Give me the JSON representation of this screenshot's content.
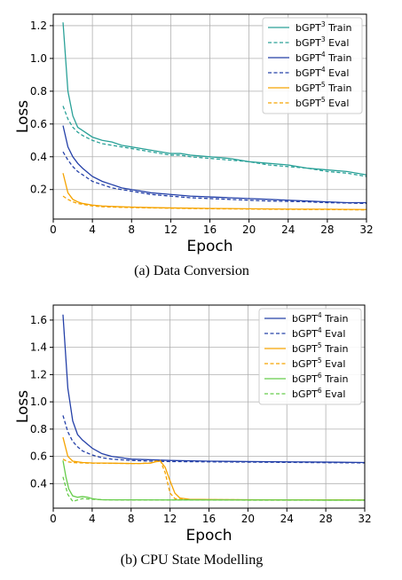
{
  "chart_data": [
    {
      "type": "line",
      "caption": "(a) Data Conversion",
      "xlabel": "Epoch",
      "ylabel": "Loss",
      "xlim": [
        0,
        32
      ],
      "ylim": [
        0.02,
        1.27
      ],
      "xticks": [
        0,
        4,
        8,
        12,
        16,
        20,
        24,
        28,
        32
      ],
      "yticks": [
        0.2,
        0.4,
        0.6,
        0.8,
        1.0,
        1.2
      ],
      "grid": true,
      "legend_position": "top-right",
      "series": [
        {
          "name_base": "bGPT",
          "name_sup": "3",
          "name_suffix": "Train",
          "color": "#2aa198",
          "dash": "solid",
          "x": [
            1,
            1.5,
            2,
            2.5,
            3,
            4,
            5,
            6,
            7,
            8,
            9,
            10,
            11,
            12,
            13,
            14,
            16,
            18,
            20,
            22,
            24,
            26,
            28,
            30,
            32
          ],
          "y": [
            1.22,
            0.8,
            0.65,
            0.58,
            0.56,
            0.52,
            0.5,
            0.49,
            0.47,
            0.46,
            0.45,
            0.44,
            0.43,
            0.42,
            0.42,
            0.41,
            0.4,
            0.39,
            0.37,
            0.36,
            0.35,
            0.33,
            0.32,
            0.31,
            0.29
          ]
        },
        {
          "name_base": "bGPT",
          "name_sup": "3",
          "name_suffix": "Eval",
          "color": "#2aa198",
          "dash": "dashed",
          "x": [
            1,
            1.5,
            2,
            2.5,
            3,
            4,
            5,
            6,
            7,
            8,
            9,
            10,
            11,
            12,
            13,
            14,
            16,
            18,
            20,
            22,
            24,
            26,
            28,
            30,
            32
          ],
          "y": [
            0.71,
            0.63,
            0.58,
            0.55,
            0.53,
            0.5,
            0.48,
            0.47,
            0.46,
            0.45,
            0.44,
            0.43,
            0.42,
            0.41,
            0.41,
            0.4,
            0.39,
            0.38,
            0.37,
            0.35,
            0.34,
            0.33,
            0.31,
            0.3,
            0.28
          ]
        },
        {
          "name_base": "bGPT",
          "name_sup": "4",
          "name_suffix": "Train",
          "color": "#2440a8",
          "dash": "solid",
          "x": [
            1,
            1.5,
            2,
            2.5,
            3,
            4,
            5,
            6,
            7,
            8,
            10,
            12,
            14,
            16,
            18,
            20,
            22,
            24,
            26,
            28,
            30,
            32
          ],
          "y": [
            0.59,
            0.46,
            0.4,
            0.36,
            0.33,
            0.28,
            0.25,
            0.23,
            0.21,
            0.2,
            0.18,
            0.17,
            0.16,
            0.155,
            0.15,
            0.145,
            0.14,
            0.135,
            0.13,
            0.125,
            0.12,
            0.12
          ]
        },
        {
          "name_base": "bGPT",
          "name_sup": "4",
          "name_suffix": "Eval",
          "color": "#2440a8",
          "dash": "dashed",
          "x": [
            1,
            1.5,
            2,
            2.5,
            3,
            4,
            5,
            6,
            7,
            8,
            10,
            12,
            14,
            16,
            18,
            20,
            22,
            24,
            26,
            28,
            30,
            32
          ],
          "y": [
            0.43,
            0.38,
            0.34,
            0.31,
            0.29,
            0.25,
            0.23,
            0.21,
            0.2,
            0.19,
            0.17,
            0.16,
            0.15,
            0.145,
            0.14,
            0.135,
            0.13,
            0.128,
            0.125,
            0.12,
            0.118,
            0.115
          ]
        },
        {
          "name_base": "bGPT",
          "name_sup": "5",
          "name_suffix": "Train",
          "color": "#f5a300",
          "dash": "solid",
          "x": [
            1,
            1.5,
            2,
            2.5,
            3,
            4,
            5,
            6,
            8,
            10,
            12,
            16,
            20,
            24,
            28,
            32
          ],
          "y": [
            0.3,
            0.18,
            0.14,
            0.125,
            0.115,
            0.105,
            0.1,
            0.097,
            0.093,
            0.09,
            0.088,
            0.085,
            0.083,
            0.081,
            0.08,
            0.078
          ]
        },
        {
          "name_base": "bGPT",
          "name_sup": "5",
          "name_suffix": "Eval",
          "color": "#f5a300",
          "dash": "dashed",
          "x": [
            1,
            1.5,
            2,
            2.5,
            3,
            4,
            5,
            6,
            8,
            10,
            12,
            16,
            20,
            24,
            28,
            32
          ],
          "y": [
            0.16,
            0.14,
            0.125,
            0.115,
            0.11,
            0.1,
            0.095,
            0.093,
            0.09,
            0.088,
            0.086,
            0.083,
            0.081,
            0.079,
            0.078,
            0.076
          ]
        }
      ]
    },
    {
      "type": "line",
      "caption": "(b) CPU State Modelling",
      "xlabel": "Epoch",
      "ylabel": "Loss",
      "xlim": [
        0,
        32
      ],
      "ylim": [
        0.22,
        1.71
      ],
      "xticks": [
        0,
        4,
        8,
        12,
        16,
        20,
        24,
        28,
        32
      ],
      "yticks": [
        0.4,
        0.6,
        0.8,
        1.0,
        1.2,
        1.4,
        1.6
      ],
      "grid": true,
      "legend_position": "top-right",
      "series": [
        {
          "name_base": "bGPT",
          "name_sup": "4",
          "name_suffix": "Train",
          "color": "#2440a8",
          "dash": "solid",
          "x": [
            1,
            1.5,
            2,
            2.5,
            3,
            4,
            5,
            6,
            7,
            8,
            10,
            12,
            16,
            20,
            24,
            28,
            32
          ],
          "y": [
            1.64,
            1.1,
            0.86,
            0.76,
            0.72,
            0.66,
            0.62,
            0.6,
            0.59,
            0.58,
            0.575,
            0.57,
            0.565,
            0.562,
            0.56,
            0.558,
            0.555
          ]
        },
        {
          "name_base": "bGPT",
          "name_sup": "4",
          "name_suffix": "Eval",
          "color": "#2440a8",
          "dash": "dashed",
          "x": [
            1,
            1.5,
            2,
            2.5,
            3,
            4,
            5,
            6,
            7,
            8,
            10,
            12,
            16,
            20,
            24,
            28,
            32
          ],
          "y": [
            0.9,
            0.78,
            0.71,
            0.67,
            0.64,
            0.61,
            0.59,
            0.58,
            0.575,
            0.57,
            0.565,
            0.562,
            0.56,
            0.558,
            0.556,
            0.554,
            0.552
          ]
        },
        {
          "name_base": "bGPT",
          "name_sup": "5",
          "name_suffix": "Train",
          "color": "#f5a300",
          "dash": "solid",
          "x": [
            1,
            1.5,
            2,
            2.5,
            3,
            4,
            6,
            8,
            9,
            10,
            10.5,
            11,
            11.5,
            12,
            12.5,
            13,
            14,
            16,
            20,
            24,
            28,
            32
          ],
          "y": [
            0.74,
            0.6,
            0.565,
            0.56,
            0.555,
            0.552,
            0.55,
            0.548,
            0.548,
            0.55,
            0.56,
            0.565,
            0.52,
            0.42,
            0.33,
            0.295,
            0.285,
            0.283,
            0.282,
            0.281,
            0.281,
            0.28
          ]
        },
        {
          "name_base": "bGPT",
          "name_sup": "5",
          "name_suffix": "Eval",
          "color": "#f5a300",
          "dash": "dashed",
          "x": [
            1,
            1.5,
            2,
            2.5,
            3,
            4,
            6,
            8,
            9,
            10,
            10.5,
            11,
            11.5,
            12,
            12.5,
            13,
            14,
            16,
            20,
            24,
            28,
            32
          ],
          "y": [
            0.58,
            0.56,
            0.555,
            0.553,
            0.552,
            0.55,
            0.549,
            0.548,
            0.548,
            0.552,
            0.565,
            0.57,
            0.48,
            0.33,
            0.29,
            0.285,
            0.283,
            0.282,
            0.281,
            0.28,
            0.28,
            0.279
          ]
        },
        {
          "name_base": "bGPT",
          "name_sup": "6",
          "name_suffix": "Train",
          "color": "#66cc4a",
          "dash": "solid",
          "x": [
            1,
            1.3,
            1.6,
            2,
            2.5,
            3,
            3.5,
            4,
            4.5,
            5,
            6,
            8,
            12,
            16,
            20,
            24,
            28,
            32
          ],
          "y": [
            0.57,
            0.45,
            0.36,
            0.31,
            0.3,
            0.305,
            0.3,
            0.29,
            0.285,
            0.282,
            0.281,
            0.281,
            0.28,
            0.28,
            0.28,
            0.28,
            0.279,
            0.279
          ]
        },
        {
          "name_base": "bGPT",
          "name_sup": "6",
          "name_suffix": "Eval",
          "color": "#66cc4a",
          "dash": "dashed",
          "x": [
            1,
            1.5,
            2,
            2.5,
            3,
            4,
            5,
            6,
            8,
            12,
            16,
            20,
            24,
            28,
            32
          ],
          "y": [
            0.45,
            0.32,
            0.27,
            0.28,
            0.29,
            0.285,
            0.282,
            0.281,
            0.28,
            0.28,
            0.28,
            0.279,
            0.279,
            0.279,
            0.279
          ]
        }
      ]
    }
  ]
}
